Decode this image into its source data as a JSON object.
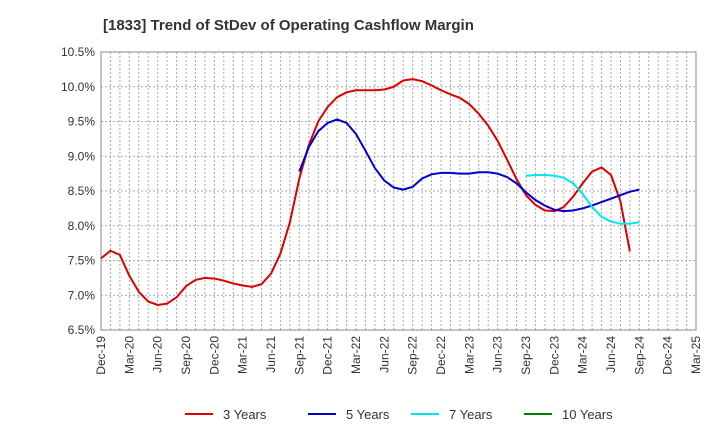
{
  "chart_data": {
    "type": "line",
    "title": "[1833]  Trend of StDev of Operating Cashflow Margin",
    "xlabel": "",
    "ylabel": "",
    "x_ticks": [
      "Dec-19",
      "Mar-20",
      "Jun-20",
      "Sep-20",
      "Dec-20",
      "Mar-21",
      "Jun-21",
      "Sep-21",
      "Dec-21",
      "Mar-22",
      "Jun-22",
      "Sep-22",
      "Dec-22",
      "Mar-23",
      "Jun-23",
      "Sep-23",
      "Dec-23",
      "Mar-24",
      "Jun-24",
      "Sep-24",
      "Dec-24",
      "Mar-25"
    ],
    "y_ticks": [
      "6.5%",
      "7.0%",
      "7.5%",
      "8.0%",
      "8.5%",
      "9.0%",
      "9.5%",
      "10.0%",
      "10.5%"
    ],
    "ylim": [
      6.5,
      10.5
    ],
    "grid": true,
    "legend_position": "bottom",
    "series": [
      {
        "name": "3 Years",
        "color": "#dd0000",
        "start_month": 0,
        "values": [
          7.53,
          7.64,
          7.58,
          7.28,
          7.05,
          6.91,
          6.86,
          6.88,
          6.97,
          7.13,
          7.22,
          7.25,
          7.24,
          7.21,
          7.17,
          7.14,
          7.12,
          7.16,
          7.31,
          7.6,
          8.05,
          8.68,
          9.16,
          9.5,
          9.71,
          9.85,
          9.92,
          9.95,
          9.95,
          9.95,
          9.96,
          10.0,
          10.09,
          10.11,
          10.08,
          10.02,
          9.95,
          9.89,
          9.84,
          9.75,
          9.61,
          9.44,
          9.22,
          8.95,
          8.67,
          8.44,
          8.3,
          8.22,
          8.21,
          8.27,
          8.42,
          8.61,
          8.78,
          8.84,
          8.73,
          8.35,
          7.63
        ]
      },
      {
        "name": "5 Years",
        "color": "#0000cc",
        "start_month": 21,
        "values": [
          8.78,
          9.13,
          9.36,
          9.48,
          9.53,
          9.48,
          9.32,
          9.08,
          8.83,
          8.65,
          8.55,
          8.52,
          8.56,
          8.68,
          8.74,
          8.76,
          8.76,
          8.75,
          8.75,
          8.77,
          8.77,
          8.75,
          8.7,
          8.61,
          8.48,
          8.37,
          8.29,
          8.23,
          8.21,
          8.22,
          8.25,
          8.29,
          8.34,
          8.39,
          8.44,
          8.49,
          8.52
        ]
      },
      {
        "name": "7 Years",
        "color": "#00e5ee",
        "start_month": 45,
        "values": [
          8.72,
          8.73,
          8.73,
          8.72,
          8.69,
          8.61,
          8.46,
          8.27,
          8.13,
          8.06,
          8.03,
          8.03,
          8.05
        ]
      },
      {
        "name": "10 Years",
        "color": "#008000",
        "start_month": 0,
        "values": []
      }
    ]
  }
}
